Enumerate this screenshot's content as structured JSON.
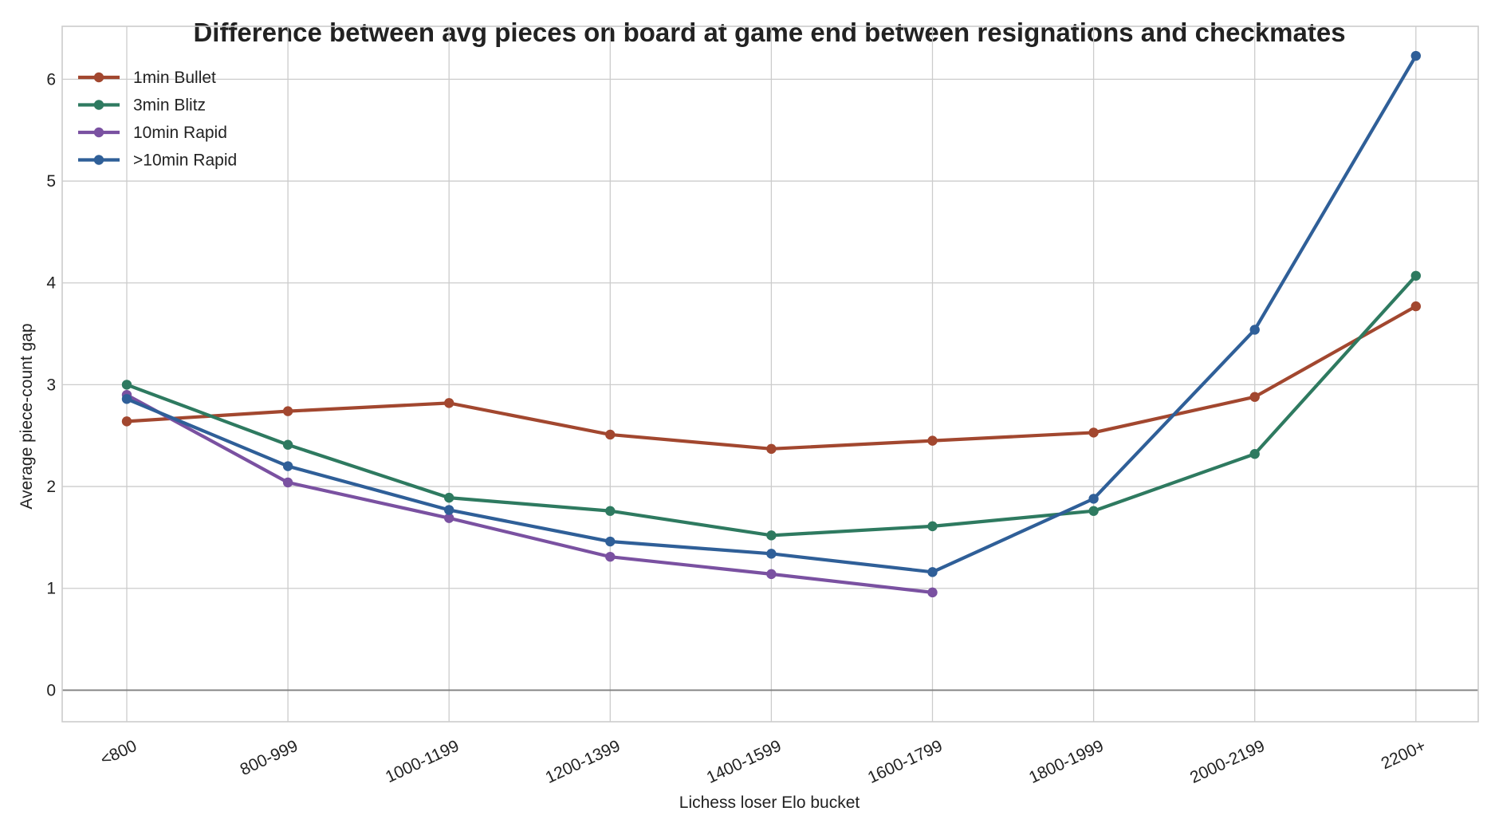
{
  "chart_data": {
    "type": "line",
    "title": "Difference between avg pieces on board at game end between resignations and checkmates",
    "xlabel": "Lichess loser Elo bucket",
    "ylabel": "Average piece-count gap",
    "categories": [
      "<800",
      "800-999",
      "1000-1199",
      "1200-1399",
      "1400-1599",
      "1600-1799",
      "1800-1999",
      "2000-2199",
      "2200+"
    ],
    "yticks": [
      0,
      1,
      2,
      3,
      4,
      5,
      6
    ],
    "ylim": [
      -0.31,
      6.52
    ],
    "grid": true,
    "zero_line": true,
    "legend_position": "top-left",
    "series": [
      {
        "name": "1min Bullet",
        "color": "#a2472f",
        "values": [
          2.64,
          2.74,
          2.82,
          2.51,
          2.37,
          2.45,
          2.53,
          2.88,
          3.77
        ]
      },
      {
        "name": "3min Blitz",
        "color": "#2e7a60",
        "values": [
          3.0,
          2.41,
          1.89,
          1.76,
          1.52,
          1.61,
          1.76,
          2.32,
          4.07
        ]
      },
      {
        "name": "10min Rapid",
        "color": "#7a51a1",
        "values": [
          2.9,
          2.04,
          1.69,
          1.31,
          1.14,
          0.96,
          null,
          null,
          null
        ]
      },
      {
        "name": ">10min Rapid",
        "color": "#2f5f98",
        "values": [
          2.86,
          2.2,
          1.77,
          1.46,
          1.34,
          1.16,
          1.88,
          3.54,
          6.23
        ]
      }
    ]
  }
}
